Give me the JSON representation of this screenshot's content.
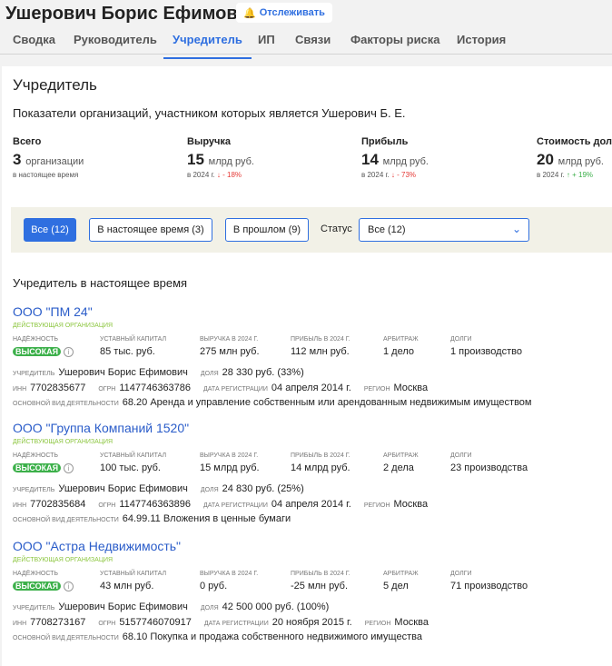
{
  "header": {
    "title": "Ушерович Борис Ефимович",
    "track_label": "Отслеживать"
  },
  "tabs": [
    "Сводка",
    "Руководитель",
    "Учредитель",
    "ИП",
    "Связи",
    "Факторы риска",
    "История"
  ],
  "active_tab": "Учредитель",
  "section": {
    "title": "Учредитель",
    "subtitle": "Показатели организаций, участником которых является Ушерович Б. Е."
  },
  "stats": [
    {
      "label": "Всего",
      "value": "3",
      "unit": "организации",
      "note": "в настоящее время",
      "arrow": "",
      "change": ""
    },
    {
      "label": "Выручка",
      "value": "15",
      "unit": "млрд руб.",
      "note": "в 2024 г.",
      "arrow": "↓",
      "change": "- 18%"
    },
    {
      "label": "Прибыль",
      "value": "14",
      "unit": "млрд руб.",
      "note": "в 2024 г.",
      "arrow": "↓",
      "change": "- 73%"
    },
    {
      "label": "Стоимость доле",
      "value": "20",
      "unit": "млрд руб.",
      "note": "в 2024 г.",
      "arrow": "↑",
      "change": "+ 19%"
    }
  ],
  "filters": {
    "all": "Все (12)",
    "current": "В настоящее время (3)",
    "past": "В прошлом (9)",
    "status_label": "Статус",
    "status_value": "Все (12)"
  },
  "list_title": "Учредитель в настоящее время",
  "labels": {
    "reliability": "Надёжность",
    "capital": "Уставный капитал",
    "revenue": "Выручка в 2024 г.",
    "profit": "Прибыль в 2024 г.",
    "arbitr": "Арбитраж",
    "debts": "Долги",
    "founder": "Учредитель",
    "share": "Доля",
    "inn": "ИНН",
    "ogrn": "ОГРН",
    "reg_date": "Дата регистрации",
    "region": "Регион",
    "okved": "Основной вид деятельности"
  },
  "orgs": [
    {
      "name": "ООО \"ПМ 24\"",
      "status": "Действующая организация",
      "reliability": "ВЫСОКАЯ",
      "capital": "85 тыс. руб.",
      "revenue": "275 млн руб.",
      "profit": "112 млн руб.",
      "arbitr": "1 дело",
      "debts": "1 производство",
      "founder": "Ушерович Борис Ефимович",
      "share": "28 330 руб. (33%)",
      "inn": "7702835677",
      "ogrn": "1147746363786",
      "reg_date": "04 апреля 2014 г.",
      "region": "Москва",
      "okved": "68.20 Аренда и управление собственным или арендованным недвижимым имуществом"
    },
    {
      "name": "ООО \"Группа Компаний 1520\"",
      "status": "Действующая организация",
      "reliability": "ВЫСОКАЯ",
      "capital": "100 тыс. руб.",
      "revenue": "15 млрд руб.",
      "profit": "14 млрд руб.",
      "arbitr": "2 дела",
      "debts": "23 производства",
      "founder": "Ушерович Борис Ефимович",
      "share": "24 830 руб. (25%)",
      "inn": "7702835684",
      "ogrn": "1147746363896",
      "reg_date": "04 апреля 2014 г.",
      "region": "Москва",
      "okved": "64.99.11 Вложения в ценные бумаги"
    },
    {
      "name": "ООО \"Астра Недвижимость\"",
      "status": "Действующая организация",
      "reliability": "ВЫСОКАЯ",
      "capital": "43 млн руб.",
      "revenue": "0 руб.",
      "profit": "-25 млн руб.",
      "arbitr": "5 дел",
      "debts": "71 производство",
      "founder": "Ушерович Борис Ефимович",
      "share": "42 500 000 руб. (100%)",
      "inn": "7708273167",
      "ogrn": "5157746070917",
      "reg_date": "20 ноября 2015 г.",
      "region": "Москва",
      "okved": "68.10 Покупка и продажа собственного недвижимого имущества"
    }
  ]
}
